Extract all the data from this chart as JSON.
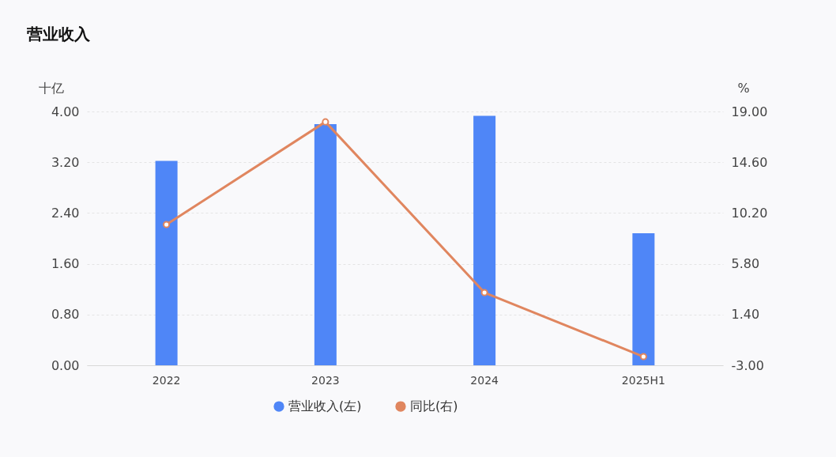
{
  "chart_data": {
    "type": "bar",
    "title": "营业收入",
    "ylabel": "十亿",
    "y2label": "%",
    "categories": [
      "2022",
      "2023",
      "2024",
      "2025H1"
    ],
    "series": [
      {
        "name": "营业收入(左)",
        "color": "#4f86f7",
        "values": [
          3.22,
          3.8,
          3.93,
          2.08
        ]
      },
      {
        "name": "同比(右)",
        "type": "line",
        "axis": "y2",
        "color": "#e0865f",
        "values": [
          9.2,
          18.1,
          3.3,
          -2.25
        ]
      }
    ],
    "ylim": [
      0,
      4
    ],
    "yticks": [
      {
        "value": 0,
        "label": "0.00"
      },
      {
        "value": 0.8,
        "label": "0.80"
      },
      {
        "value": 1.6,
        "label": "1.60"
      },
      {
        "value": 2.4,
        "label": "2.40"
      },
      {
        "value": 3.2,
        "label": "3.20"
      },
      {
        "value": 4,
        "label": "4.00"
      }
    ],
    "y2lim": [
      -3,
      19
    ],
    "y2ticks": [
      {
        "value": -3,
        "label": "-3.00"
      },
      {
        "value": 1.4,
        "label": "1.40"
      },
      {
        "value": 5.8,
        "label": "5.80"
      },
      {
        "value": 10.2,
        "label": "10.20"
      },
      {
        "value": 14.6,
        "label": "14.60"
      },
      {
        "value": 19,
        "label": "19.00"
      }
    ],
    "grid": "y",
    "legend": "bottom",
    "marker": "circle"
  }
}
